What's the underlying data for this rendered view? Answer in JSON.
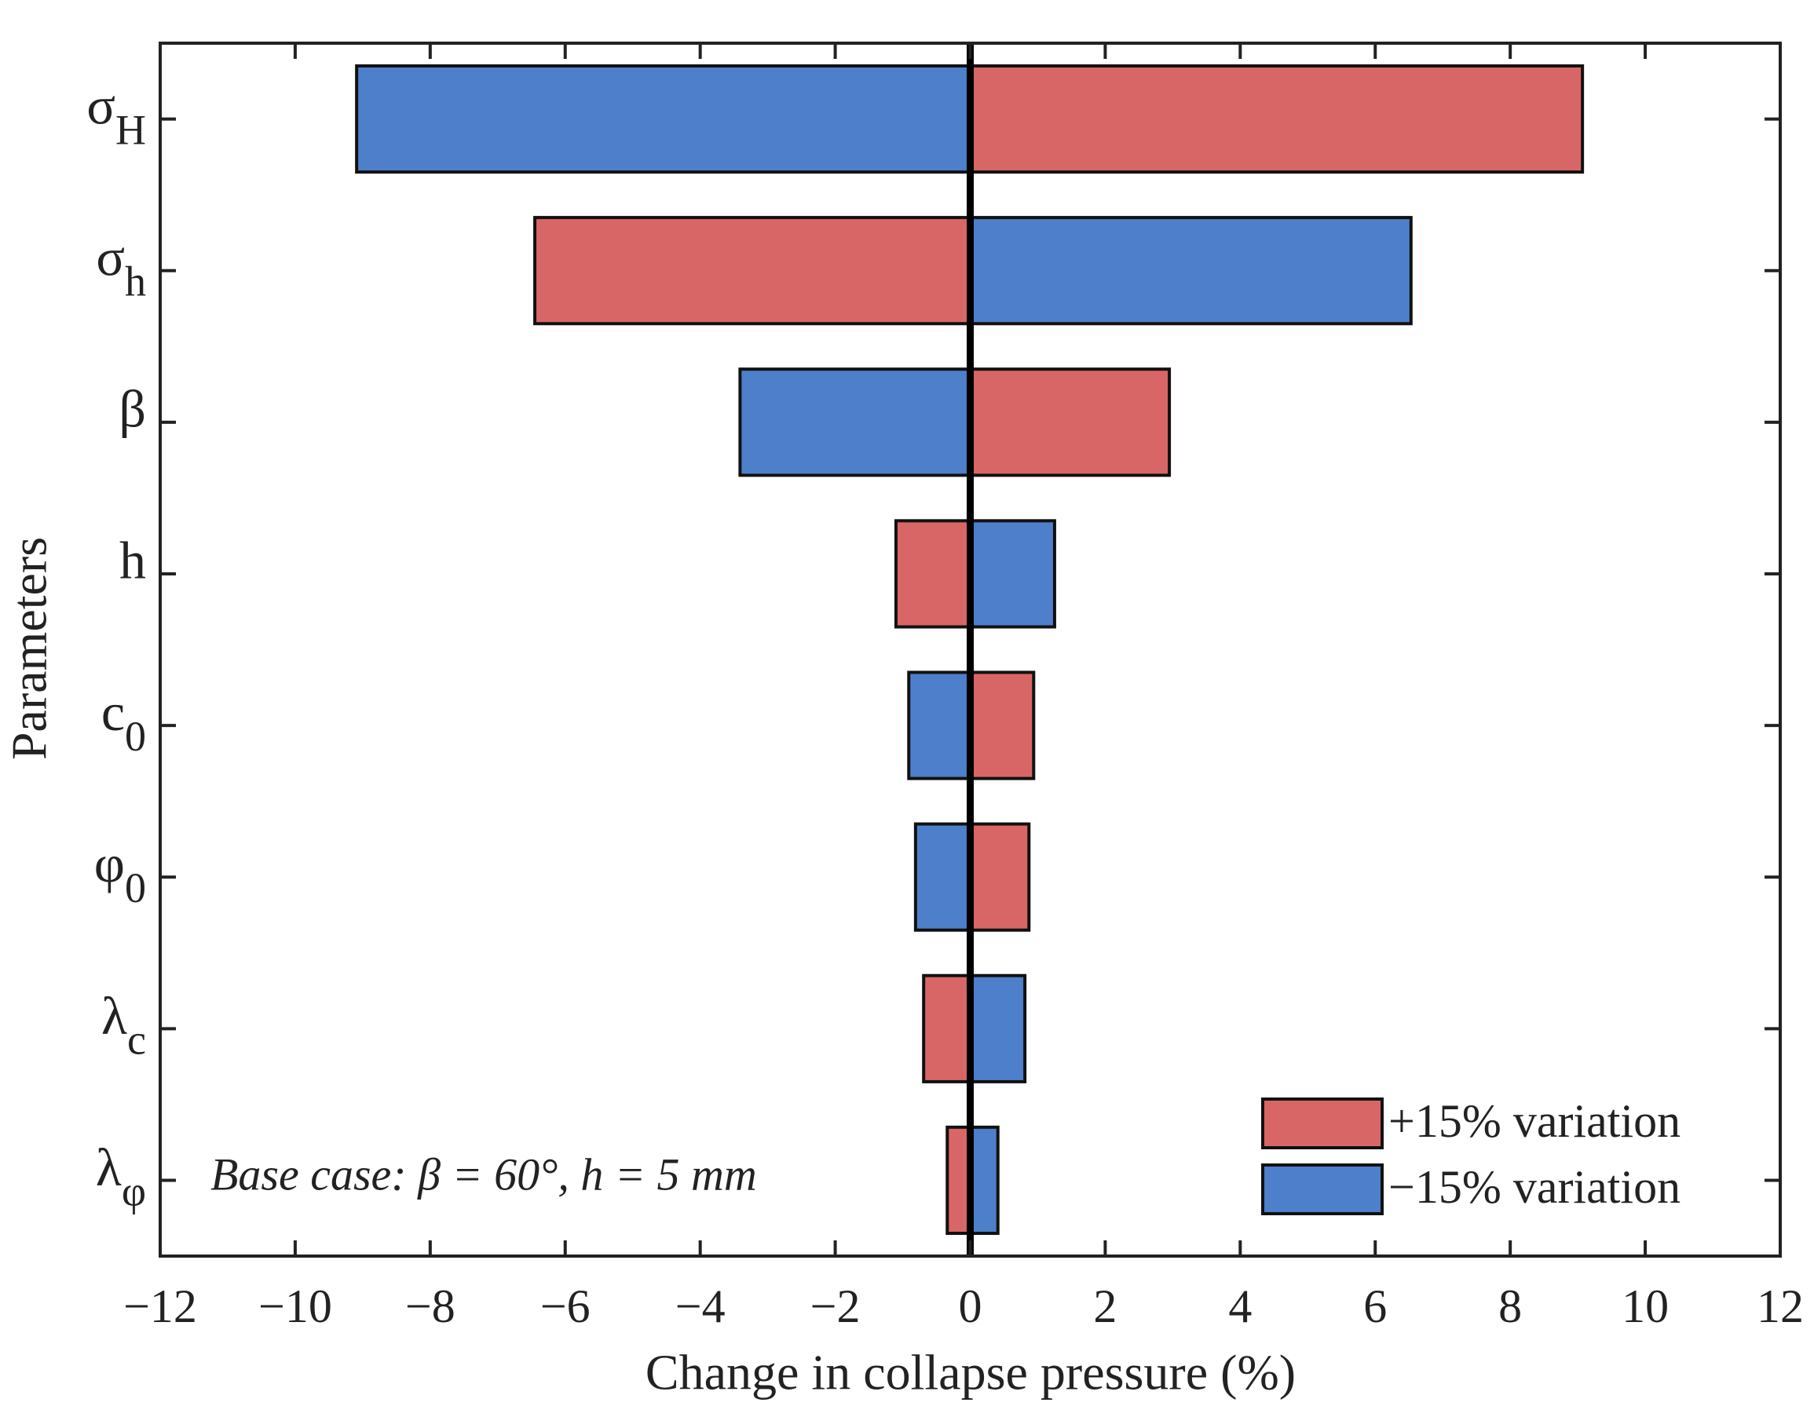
{
  "chart_data": {
    "type": "tornado",
    "xlabel": "Change in collapse pressure (%)",
    "ylabel": "Parameters",
    "annotation": "Base case: β = 60°, h = 5 mm",
    "categories": [
      "σH",
      "σh",
      "β",
      "h",
      "c0",
      "φ0",
      "λc",
      "λφ"
    ],
    "series": [
      {
        "name": "+15% variation",
        "color": "#d96666",
        "values": [
          9.07,
          -6.45,
          2.95,
          -1.1,
          0.94,
          0.87,
          -0.69,
          -0.34
        ]
      },
      {
        "name": "−15% variation",
        "color": "#4d7fcb",
        "values": [
          -9.09,
          6.53,
          -3.41,
          1.25,
          -0.91,
          -0.81,
          0.81,
          0.41
        ]
      }
    ],
    "xlim": [
      -12,
      12
    ],
    "xticks": [
      {
        "value": -12,
        "label": "−12"
      },
      {
        "value": -10,
        "label": "−10"
      },
      {
        "value": -8,
        "label": "−8"
      },
      {
        "value": -6,
        "label": "−6"
      },
      {
        "value": -4,
        "label": "−4"
      },
      {
        "value": -2,
        "label": "−2"
      },
      0,
      2,
      4,
      6,
      8,
      10,
      12
    ],
    "legend": "lower right"
  }
}
